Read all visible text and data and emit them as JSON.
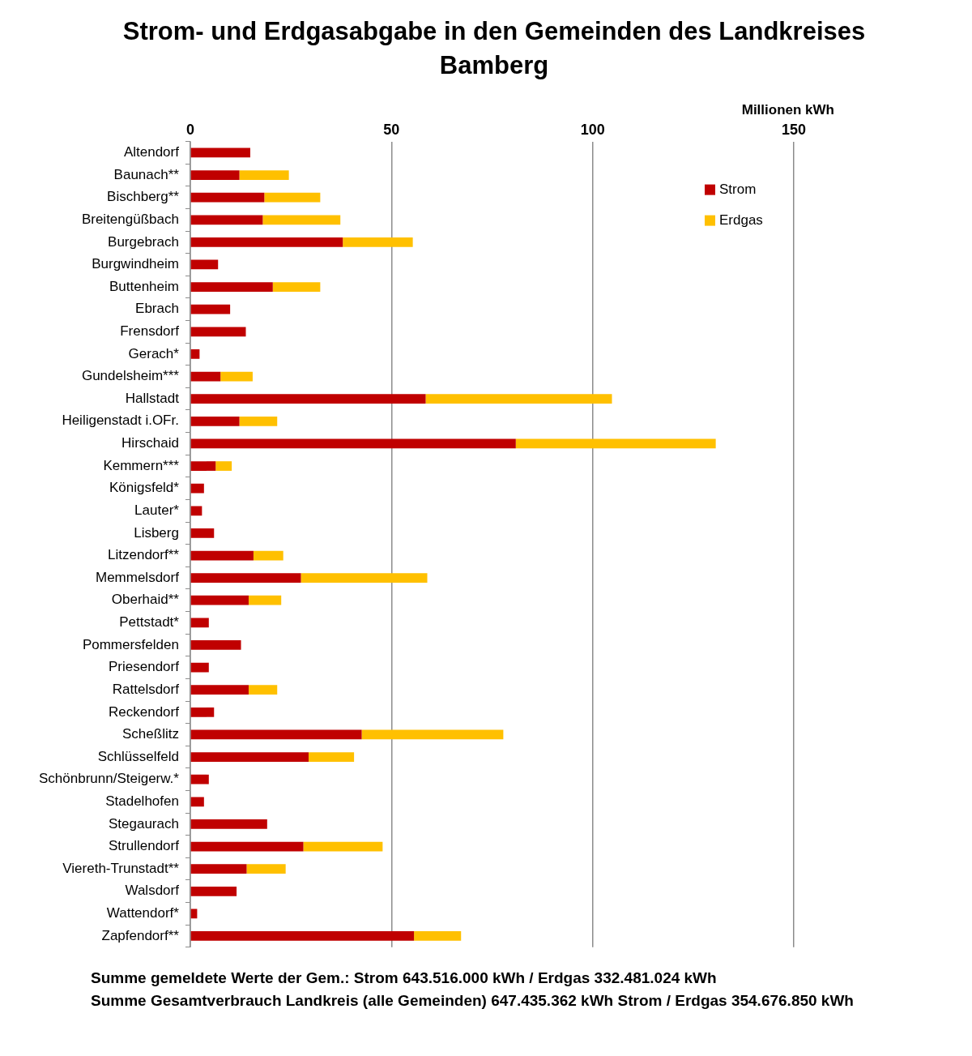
{
  "chart_data": {
    "type": "bar",
    "orientation": "horizontal",
    "stacked": true,
    "title": "Strom- und Erdgasabgabe in den Gemeinden des Landkreises Bamberg",
    "xlabel": "Millionen kWh",
    "categories": [
      "Altendorf",
      "Baunach**",
      "Bischberg**",
      "Breitengüßbach",
      "Burgebrach",
      "Burgwindheim",
      "Buttenheim",
      "Ebrach",
      "Frensdorf",
      "Gerach*",
      "Gundelsheim***",
      "Hallstadt",
      "Heiligenstadt i.OFr.",
      "Hirschaid",
      "Kemmern***",
      "Königsfeld*",
      "Lauter*",
      "Lisberg",
      "Litzendorf**",
      "Memmelsdorf",
      "Oberhaid**",
      "Pettstadt*",
      "Pommersfelden",
      "Priesendorf",
      "Rattelsdorf",
      "Reckendorf",
      "Scheßlitz",
      "Schlüsselfeld",
      "Schönbrunn/Steigerw.*",
      "Stadelhofen",
      "Stegaurach",
      "Strullendorf",
      "Viereth-Trunstadt**",
      "Walsdorf",
      "Wattendorf*",
      "Zapfendorf**"
    ],
    "series": [
      {
        "name": "Strom",
        "color": "#c00000",
        "values": [
          14.9,
          12.2,
          18.4,
          18.0,
          37.9,
          6.9,
          20.5,
          9.9,
          13.8,
          2.3,
          7.5,
          58.5,
          12.2,
          80.9,
          6.3,
          3.4,
          2.9,
          5.9,
          15.7,
          27.5,
          14.5,
          4.6,
          12.6,
          4.6,
          14.5,
          5.9,
          42.6,
          29.4,
          4.6,
          3.4,
          19.1,
          28.1,
          14.0,
          11.5,
          1.7,
          55.6
        ]
      },
      {
        "name": "Erdgas",
        "color": "#ffc000",
        "values": [
          null,
          12.3,
          13.9,
          19.3,
          17.4,
          null,
          11.8,
          null,
          null,
          null,
          8.0,
          46.3,
          9.4,
          49.7,
          4.0,
          null,
          null,
          null,
          7.4,
          31.4,
          8.1,
          null,
          null,
          null,
          7.1,
          null,
          35.2,
          11.3,
          null,
          null,
          null,
          19.7,
          9.7,
          null,
          null,
          11.7
        ]
      }
    ],
    "xlim": [
      0,
      150
    ],
    "xticks": [
      0,
      50,
      100,
      150
    ],
    "grid": "x",
    "legend": "top right",
    "annotations": [
      "Summe gemeldete Werte der Gem.: Strom 643.516.000  kWh / Erdgas 332.481.024  kWh",
      "Summe Gesamtverbrauch Landkreis (alle Gemeinden) 647.435.362 kWh Strom / Erdgas 354.676.850  kWh"
    ]
  }
}
